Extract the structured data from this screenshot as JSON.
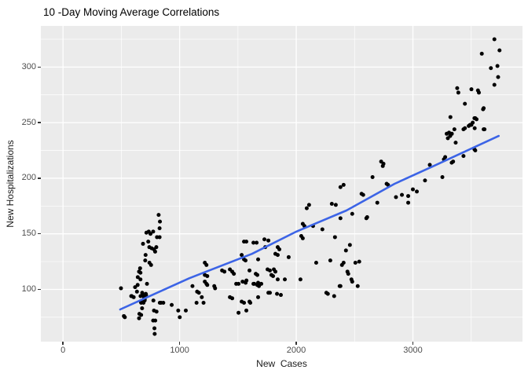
{
  "chart_data": {
    "type": "scatter",
    "title": "10 -Day Moving Average Correlations",
    "xlabel": "New  Cases",
    "ylabel": "New Hospitalizations",
    "x_ticks": [
      0,
      1000,
      2000,
      3000
    ],
    "x_minor_ticks": [
      500,
      1500,
      2500,
      3500
    ],
    "y_ticks": [
      100,
      150,
      200,
      250,
      300
    ],
    "y_minor_ticks": [
      75,
      125,
      175,
      225,
      275,
      325
    ],
    "xlim": [
      -190,
      3940
    ],
    "ylim": [
      53,
      337
    ],
    "grid": true,
    "legend": "none",
    "panel_bg": "#EBEBEB",
    "grid_color": "#FFFFFF",
    "point_color": "#000000",
    "point_radius": 2.5,
    "tick_label_color": "#4D4D4D",
    "smooth_line": {
      "color": "#3C64E6",
      "width": 2.6,
      "points": [
        [
          490,
          82
        ],
        [
          1082,
          110
        ],
        [
          1620,
          132
        ],
        [
          2000,
          152
        ],
        [
          2430,
          171
        ],
        [
          2843,
          195
        ],
        [
          3199,
          212
        ],
        [
          3736,
          238
        ]
      ]
    },
    "points": [
      [
        497,
        101
      ],
      [
        522,
        76
      ],
      [
        530,
        75
      ],
      [
        585,
        94
      ],
      [
        589,
        94
      ],
      [
        606,
        93
      ],
      [
        618,
        102
      ],
      [
        634,
        98
      ],
      [
        640,
        104
      ],
      [
        641,
        111
      ],
      [
        652,
        116
      ],
      [
        652,
        74
      ],
      [
        655,
        78
      ],
      [
        661,
        119
      ],
      [
        664,
        115
      ],
      [
        664,
        109
      ],
      [
        665,
        94
      ],
      [
        667,
        89
      ],
      [
        670,
        88
      ],
      [
        670,
        77
      ],
      [
        678,
        83
      ],
      [
        679,
        97
      ],
      [
        680,
        95
      ],
      [
        685,
        90
      ],
      [
        686,
        141
      ],
      [
        690,
        88
      ],
      [
        695,
        93
      ],
      [
        700,
        90
      ],
      [
        701,
        91
      ],
      [
        705,
        126
      ],
      [
        708,
        131
      ],
      [
        710,
        96
      ],
      [
        712,
        95
      ],
      [
        715,
        151
      ],
      [
        720,
        105
      ],
      [
        731,
        143
      ],
      [
        735,
        152
      ],
      [
        740,
        138
      ],
      [
        741,
        124
      ],
      [
        750,
        150
      ],
      [
        755,
        122
      ],
      [
        760,
        137
      ],
      [
        773,
        152
      ],
      [
        773,
        72
      ],
      [
        775,
        90
      ],
      [
        780,
        136
      ],
      [
        780,
        81
      ],
      [
        784,
        65
      ],
      [
        786,
        60
      ],
      [
        790,
        134
      ],
      [
        791,
        72
      ],
      [
        800,
        138
      ],
      [
        802,
        80
      ],
      [
        806,
        147
      ],
      [
        820,
        167
      ],
      [
        828,
        155
      ],
      [
        828,
        147
      ],
      [
        830,
        88
      ],
      [
        831,
        161
      ],
      [
        840,
        88
      ],
      [
        860,
        88
      ],
      [
        932,
        86
      ],
      [
        988,
        81
      ],
      [
        1001,
        75
      ],
      [
        1053,
        81
      ],
      [
        1110,
        103
      ],
      [
        1145,
        88
      ],
      [
        1150,
        98
      ],
      [
        1165,
        97
      ],
      [
        1190,
        93
      ],
      [
        1205,
        88
      ],
      [
        1216,
        124
      ],
      [
        1216,
        113
      ],
      [
        1216,
        107
      ],
      [
        1230,
        122
      ],
      [
        1230,
        105
      ],
      [
        1237,
        112
      ],
      [
        1237,
        104
      ],
      [
        1297,
        103
      ],
      [
        1304,
        101
      ],
      [
        1364,
        117
      ],
      [
        1384,
        116
      ],
      [
        1431,
        118
      ],
      [
        1431,
        93
      ],
      [
        1451,
        116
      ],
      [
        1451,
        92
      ],
      [
        1465,
        114
      ],
      [
        1485,
        105
      ],
      [
        1505,
        105
      ],
      [
        1505,
        79
      ],
      [
        1532,
        131
      ],
      [
        1532,
        89
      ],
      [
        1540,
        107
      ],
      [
        1552,
        143
      ],
      [
        1552,
        127
      ],
      [
        1552,
        88
      ],
      [
        1565,
        126
      ],
      [
        1566,
        106
      ],
      [
        1572,
        143
      ],
      [
        1572,
        81
      ],
      [
        1573,
        108
      ],
      [
        1599,
        117
      ],
      [
        1599,
        89
      ],
      [
        1606,
        88
      ],
      [
        1633,
        142
      ],
      [
        1633,
        105
      ],
      [
        1640,
        105
      ],
      [
        1653,
        114
      ],
      [
        1660,
        142
      ],
      [
        1666,
        113
      ],
      [
        1666,
        104
      ],
      [
        1673,
        127
      ],
      [
        1673,
        106
      ],
      [
        1673,
        93
      ],
      [
        1680,
        103
      ],
      [
        1700,
        105
      ],
      [
        1727,
        145
      ],
      [
        1734,
        138
      ],
      [
        1754,
        118
      ],
      [
        1761,
        144
      ],
      [
        1761,
        97
      ],
      [
        1774,
        117
      ],
      [
        1774,
        97
      ],
      [
        1787,
        113
      ],
      [
        1801,
        112
      ],
      [
        1808,
        118
      ],
      [
        1821,
        132
      ],
      [
        1821,
        116
      ],
      [
        1835,
        96
      ],
      [
        1841,
        138
      ],
      [
        1841,
        131
      ],
      [
        1841,
        109
      ],
      [
        1855,
        136
      ],
      [
        1868,
        95
      ],
      [
        1902,
        109
      ],
      [
        1935,
        129
      ],
      [
        2036,
        109
      ],
      [
        2043,
        148
      ],
      [
        2056,
        159
      ],
      [
        2056,
        146
      ],
      [
        2070,
        157
      ],
      [
        2090,
        173
      ],
      [
        2110,
        176
      ],
      [
        2144,
        157
      ],
      [
        2171,
        124
      ],
      [
        2224,
        154
      ],
      [
        2258,
        97
      ],
      [
        2271,
        96
      ],
      [
        2292,
        126
      ],
      [
        2305,
        177
      ],
      [
        2325,
        94
      ],
      [
        2332,
        147
      ],
      [
        2339,
        176
      ],
      [
        2372,
        103
      ],
      [
        2379,
        192
      ],
      [
        2379,
        164
      ],
      [
        2379,
        103
      ],
      [
        2392,
        122
      ],
      [
        2406,
        194
      ],
      [
        2406,
        124
      ],
      [
        2426,
        135
      ],
      [
        2439,
        116
      ],
      [
        2446,
        114
      ],
      [
        2460,
        140
      ],
      [
        2473,
        109
      ],
      [
        2480,
        168
      ],
      [
        2480,
        107
      ],
      [
        2507,
        124
      ],
      [
        2527,
        103
      ],
      [
        2540,
        125
      ],
      [
        2560,
        186
      ],
      [
        2574,
        185
      ],
      [
        2601,
        164
      ],
      [
        2608,
        165
      ],
      [
        2654,
        201
      ],
      [
        2695,
        178
      ],
      [
        2728,
        215
      ],
      [
        2742,
        211
      ],
      [
        2748,
        213
      ],
      [
        2775,
        195
      ],
      [
        2787,
        194
      ],
      [
        2855,
        183
      ],
      [
        2906,
        185
      ],
      [
        2960,
        184
      ],
      [
        2960,
        178
      ],
      [
        3000,
        190
      ],
      [
        3034,
        188
      ],
      [
        3104,
        198
      ],
      [
        3145,
        212
      ],
      [
        3253,
        201
      ],
      [
        3266,
        217
      ],
      [
        3277,
        219
      ],
      [
        3290,
        240
      ],
      [
        3300,
        236
      ],
      [
        3310,
        241
      ],
      [
        3320,
        238
      ],
      [
        3322,
        255
      ],
      [
        3333,
        214
      ],
      [
        3334,
        240
      ],
      [
        3345,
        215
      ],
      [
        3356,
        244
      ],
      [
        3367,
        232
      ],
      [
        3380,
        281
      ],
      [
        3390,
        277
      ],
      [
        3434,
        244
      ],
      [
        3434,
        220
      ],
      [
        3446,
        267
      ],
      [
        3446,
        245
      ],
      [
        3479,
        247
      ],
      [
        3490,
        248
      ],
      [
        3502,
        280
      ],
      [
        3502,
        248
      ],
      [
        3513,
        250
      ],
      [
        3528,
        254
      ],
      [
        3528,
        226
      ],
      [
        3530,
        245
      ],
      [
        3535,
        254
      ],
      [
        3535,
        225
      ],
      [
        3546,
        253
      ],
      [
        3558,
        279
      ],
      [
        3566,
        277
      ],
      [
        3591,
        312
      ],
      [
        3602,
        262
      ],
      [
        3607,
        263
      ],
      [
        3607,
        244
      ],
      [
        3614,
        244
      ],
      [
        3669,
        299
      ],
      [
        3699,
        325
      ],
      [
        3699,
        284
      ],
      [
        3725,
        301
      ],
      [
        3731,
        291
      ],
      [
        3743,
        315
      ]
    ]
  }
}
